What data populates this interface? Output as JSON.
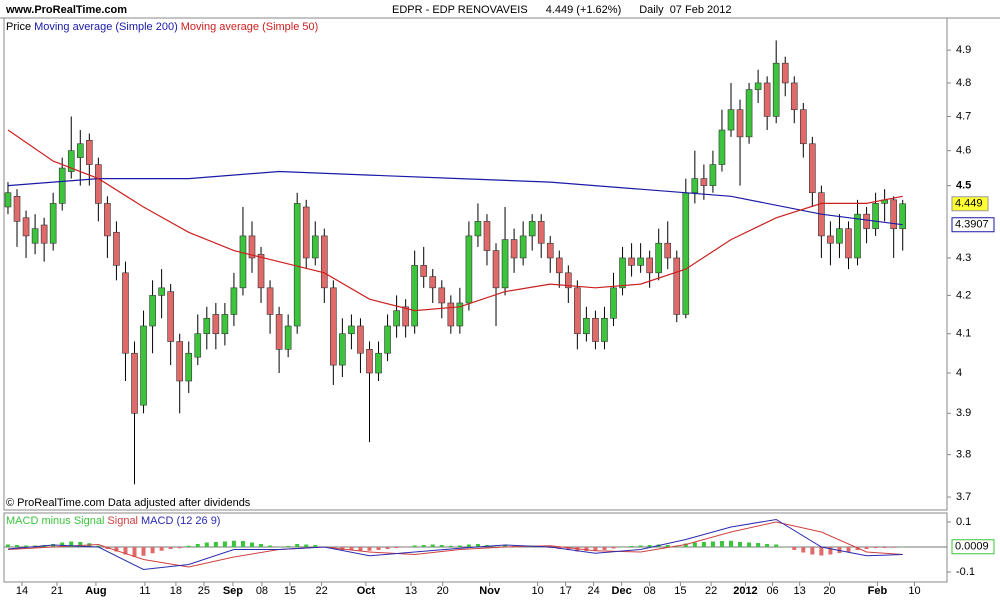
{
  "chart_data": [
    {
      "type": "candlestick",
      "site": "www.ProRealTime.com",
      "title": "EDPR - EDP RENOVAVEIS",
      "change": "4.449 (+1.62%)",
      "period": "Daily",
      "date": "07 Feb 2012",
      "price_label": "Price",
      "note": "© ProRealTime.com Data adjusted after dividends",
      "log_scale": true,
      "up_color": "#3cc43c",
      "down_color": "#e06a6a",
      "xlim": [
        -0.44,
        103.9
      ],
      "xticks": [
        {
          "value": 1.55,
          "label": "14"
        },
        {
          "value": 5.42,
          "label": "21"
        },
        {
          "value": 9.73,
          "label": "Aug"
        },
        {
          "value": 15.15,
          "label": "11"
        },
        {
          "value": 18.58,
          "label": "18"
        },
        {
          "value": 21.68,
          "label": "25"
        },
        {
          "value": 24.89,
          "label": "Sep"
        },
        {
          "value": 28.1,
          "label": "08"
        },
        {
          "value": 31.2,
          "label": "15"
        },
        {
          "value": 34.7,
          "label": "22"
        },
        {
          "value": 39.6,
          "label": "Oct"
        },
        {
          "value": 44.6,
          "label": "13"
        },
        {
          "value": 48.1,
          "label": "20"
        },
        {
          "value": 53.3,
          "label": "Nov"
        },
        {
          "value": 58.6,
          "label": "10"
        },
        {
          "value": 61.7,
          "label": "17"
        },
        {
          "value": 64.8,
          "label": "24"
        },
        {
          "value": 67.9,
          "label": "Dec"
        },
        {
          "value": 71.0,
          "label": "08"
        },
        {
          "value": 74.4,
          "label": "15"
        },
        {
          "value": 77.8,
          "label": "22"
        },
        {
          "value": 81.6,
          "label": "2012"
        },
        {
          "value": 84.6,
          "label": "06"
        },
        {
          "value": 87.6,
          "label": "13"
        },
        {
          "value": 90.9,
          "label": "20"
        },
        {
          "value": 96.2,
          "label": "Feb"
        },
        {
          "value": 100.3,
          "label": "10"
        }
      ],
      "ylim": [
        3.67,
        5.0
      ],
      "yticks": [
        3.7,
        3.8,
        3.9,
        4,
        4.1,
        4.2,
        4.3,
        4.5,
        4.6,
        4.7,
        4.8,
        4.9
      ],
      "candles": [
        [
          4.44,
          4.51,
          4.42,
          4.48
        ],
        [
          4.47,
          4.49,
          4.33,
          4.4
        ],
        [
          4.41,
          4.43,
          4.3,
          4.36
        ],
        [
          4.34,
          4.42,
          4.31,
          4.38
        ],
        [
          4.39,
          4.41,
          4.29,
          4.34
        ],
        [
          4.34,
          4.48,
          4.32,
          4.45
        ],
        [
          4.45,
          4.58,
          4.43,
          4.55
        ],
        [
          4.54,
          4.7,
          4.52,
          4.6
        ],
        [
          4.58,
          4.66,
          4.5,
          4.62
        ],
        [
          4.63,
          4.65,
          4.5,
          4.56
        ],
        [
          4.56,
          4.58,
          4.4,
          4.45
        ],
        [
          4.45,
          4.47,
          4.3,
          4.36
        ],
        [
          4.37,
          4.4,
          4.24,
          4.28
        ],
        [
          4.26,
          4.29,
          3.98,
          4.05
        ],
        [
          4.05,
          4.08,
          3.73,
          3.9
        ],
        [
          3.92,
          4.16,
          3.9,
          4.12
        ],
        [
          4.12,
          4.24,
          4.05,
          4.2
        ],
        [
          4.2,
          4.27,
          4.14,
          4.22
        ],
        [
          4.21,
          4.23,
          4.02,
          4.08
        ],
        [
          4.08,
          4.1,
          3.9,
          3.98
        ],
        [
          3.98,
          4.08,
          3.95,
          4.05
        ],
        [
          4.04,
          4.15,
          4.02,
          4.1
        ],
        [
          4.1,
          4.17,
          4.06,
          4.14
        ],
        [
          4.15,
          4.18,
          4.06,
          4.1
        ],
        [
          4.1,
          4.18,
          4.07,
          4.15
        ],
        [
          4.15,
          4.26,
          4.12,
          4.22
        ],
        [
          4.22,
          4.44,
          4.2,
          4.36
        ],
        [
          4.36,
          4.4,
          4.26,
          4.3
        ],
        [
          4.31,
          4.33,
          4.18,
          4.22
        ],
        [
          4.22,
          4.24,
          4.1,
          4.15
        ],
        [
          4.15,
          4.17,
          4.0,
          4.06
        ],
        [
          4.06,
          4.15,
          4.04,
          4.12
        ],
        [
          4.12,
          4.48,
          4.1,
          4.45
        ],
        [
          4.44,
          4.46,
          4.27,
          4.3
        ],
        [
          4.3,
          4.4,
          4.28,
          4.36
        ],
        [
          4.36,
          4.38,
          4.18,
          4.22
        ],
        [
          4.22,
          4.24,
          3.97,
          4.02
        ],
        [
          4.02,
          4.14,
          3.99,
          4.1
        ],
        [
          4.1,
          4.15,
          4.06,
          4.12
        ],
        [
          4.12,
          4.14,
          4.0,
          4.05
        ],
        [
          4.06,
          4.08,
          3.83,
          4.0
        ],
        [
          4.0,
          4.08,
          3.98,
          4.05
        ],
        [
          4.05,
          4.15,
          4.03,
          4.12
        ],
        [
          4.12,
          4.2,
          4.09,
          4.16
        ],
        [
          4.17,
          4.19,
          4.09,
          4.12
        ],
        [
          4.12,
          4.32,
          4.1,
          4.28
        ],
        [
          4.28,
          4.33,
          4.22,
          4.25
        ],
        [
          4.25,
          4.27,
          4.18,
          4.22
        ],
        [
          4.22,
          4.24,
          4.14,
          4.18
        ],
        [
          4.18,
          4.2,
          4.1,
          4.12
        ],
        [
          4.12,
          4.22,
          4.1,
          4.18
        ],
        [
          4.18,
          4.4,
          4.16,
          4.36
        ],
        [
          4.36,
          4.45,
          4.33,
          4.4
        ],
        [
          4.4,
          4.42,
          4.28,
          4.32
        ],
        [
          4.32,
          4.34,
          4.12,
          4.22
        ],
        [
          4.22,
          4.44,
          4.2,
          4.35
        ],
        [
          4.35,
          4.38,
          4.26,
          4.3
        ],
        [
          4.3,
          4.4,
          4.28,
          4.36
        ],
        [
          4.36,
          4.42,
          4.32,
          4.4
        ],
        [
          4.4,
          4.42,
          4.3,
          4.34
        ],
        [
          4.34,
          4.36,
          4.26,
          4.3
        ],
        [
          4.3,
          4.32,
          4.22,
          4.26
        ],
        [
          4.26,
          4.28,
          4.18,
          4.22
        ],
        [
          4.22,
          4.24,
          4.06,
          4.1
        ],
        [
          4.1,
          4.17,
          4.08,
          4.14
        ],
        [
          4.14,
          4.16,
          4.06,
          4.08
        ],
        [
          4.08,
          4.17,
          4.06,
          4.14
        ],
        [
          4.14,
          4.26,
          4.12,
          4.22
        ],
        [
          4.22,
          4.33,
          4.2,
          4.3
        ],
        [
          4.3,
          4.34,
          4.25,
          4.28
        ],
        [
          4.28,
          4.34,
          4.26,
          4.3
        ],
        [
          4.3,
          4.32,
          4.22,
          4.26
        ],
        [
          4.26,
          4.38,
          4.24,
          4.34
        ],
        [
          4.34,
          4.4,
          4.27,
          4.3
        ],
        [
          4.3,
          4.32,
          4.13,
          4.15
        ],
        [
          4.15,
          4.52,
          4.14,
          4.48
        ],
        [
          4.48,
          4.6,
          4.45,
          4.52
        ],
        [
          4.52,
          4.56,
          4.46,
          4.5
        ],
        [
          4.5,
          4.6,
          4.48,
          4.56
        ],
        [
          4.56,
          4.72,
          4.54,
          4.66
        ],
        [
          4.66,
          4.8,
          4.64,
          4.72
        ],
        [
          4.72,
          4.75,
          4.5,
          4.64
        ],
        [
          4.64,
          4.8,
          4.62,
          4.78
        ],
        [
          4.78,
          4.84,
          4.74,
          4.8
        ],
        [
          4.8,
          4.82,
          4.66,
          4.7
        ],
        [
          4.7,
          4.93,
          4.68,
          4.86
        ],
        [
          4.86,
          4.88,
          4.76,
          4.8
        ],
        [
          4.8,
          4.82,
          4.68,
          4.72
        ],
        [
          4.72,
          4.74,
          4.58,
          4.62
        ],
        [
          4.62,
          4.64,
          4.44,
          4.48
        ],
        [
          4.48,
          4.5,
          4.3,
          4.36
        ],
        [
          4.36,
          4.4,
          4.28,
          4.34
        ],
        [
          4.34,
          4.42,
          4.3,
          4.38
        ],
        [
          4.38,
          4.4,
          4.27,
          4.3
        ],
        [
          4.3,
          4.46,
          4.28,
          4.42
        ],
        [
          4.42,
          4.44,
          4.34,
          4.38
        ],
        [
          4.38,
          4.48,
          4.36,
          4.45
        ],
        [
          4.45,
          4.49,
          4.4,
          4.46
        ],
        [
          4.46,
          4.47,
          4.3,
          4.38
        ],
        [
          4.38,
          4.46,
          4.32,
          4.449
        ]
      ],
      "series": [
        {
          "name": "Moving average (Simple 200)",
          "color": "#1a1aa6",
          "x": [
            0,
            10,
            20,
            30,
            40,
            50,
            60,
            70,
            80,
            90,
            99
          ],
          "values": [
            4.5,
            4.52,
            4.52,
            4.54,
            4.53,
            4.52,
            4.51,
            4.49,
            4.47,
            4.42,
            4.3907
          ]
        },
        {
          "name": "Moving average (Simple 50)",
          "color": "#cc2020",
          "x": [
            0,
            5,
            10,
            15,
            20,
            25,
            30,
            35,
            40,
            45,
            50,
            55,
            60,
            65,
            70,
            75,
            80,
            85,
            90,
            95,
            99
          ],
          "values": [
            4.66,
            4.57,
            4.52,
            4.44,
            4.37,
            4.32,
            4.29,
            4.26,
            4.19,
            4.16,
            4.17,
            4.21,
            4.23,
            4.22,
            4.23,
            4.27,
            4.35,
            4.41,
            4.45,
            4.45,
            4.47
          ]
        }
      ]
    },
    {
      "type": "macd",
      "xlim": [
        -0.44,
        103.9
      ],
      "ylim": [
        -0.14,
        0.136
      ],
      "yticks": [
        0.1,
        -0.1
      ],
      "series": [
        {
          "name": "MACD minus Signal",
          "type": "bar",
          "color": "#3cc43c",
          "down_color": "#e06a6a",
          "values": [
            0.01,
            0.008,
            0.006,
            0.006,
            0.008,
            0.012,
            0.018,
            0.022,
            0.02,
            0.015,
            0.005,
            -0.008,
            -0.018,
            -0.03,
            -0.04,
            -0.035,
            -0.025,
            -0.015,
            -0.008,
            -0.005,
            0.005,
            0.012,
            0.018,
            0.02,
            0.022,
            0.025,
            0.024,
            0.018,
            0.012,
            0.006,
            0.0,
            0.004,
            0.012,
            0.01,
            0.008,
            0.002,
            -0.008,
            -0.012,
            -0.012,
            -0.014,
            -0.015,
            -0.012,
            -0.008,
            -0.004,
            -0.002,
            0.006,
            0.008,
            0.01,
            0.008,
            0.005,
            0.006,
            0.01,
            0.012,
            0.008,
            0.002,
            0.006,
            0.004,
            0.006,
            0.006,
            0.002,
            -0.004,
            -0.008,
            -0.012,
            -0.018,
            -0.016,
            -0.015,
            -0.012,
            -0.006,
            0.0,
            0.004,
            0.006,
            0.008,
            0.01,
            0.008,
            0.002,
            0.014,
            0.018,
            0.02,
            0.022,
            0.024,
            0.025,
            0.02,
            0.018,
            0.016,
            0.012,
            0.01,
            0.0,
            -0.012,
            -0.022,
            -0.03,
            -0.034,
            -0.03,
            -0.024,
            -0.02,
            -0.012,
            -0.008,
            -0.004,
            -0.004,
            -0.003,
            0.0009
          ]
        },
        {
          "name": "Signal",
          "type": "line",
          "color": "#d04040",
          "x": [
            0,
            5,
            10,
            15,
            20,
            25,
            30,
            35,
            40,
            45,
            50,
            55,
            60,
            65,
            70,
            75,
            80,
            85,
            90,
            95,
            99
          ],
          "values": [
            -0.01,
            0.0,
            0.01,
            -0.05,
            -0.08,
            -0.04,
            -0.01,
            0.0,
            -0.02,
            -0.03,
            -0.01,
            0.0,
            0.005,
            -0.015,
            -0.02,
            0.01,
            0.06,
            0.1,
            0.06,
            -0.02,
            -0.03
          ]
        },
        {
          "name": "MACD (12 26 9)",
          "type": "line",
          "color": "#2a2ab0",
          "x": [
            0,
            5,
            10,
            15,
            20,
            25,
            30,
            35,
            40,
            45,
            50,
            55,
            60,
            65,
            70,
            75,
            80,
            85,
            90,
            95,
            99
          ],
          "values": [
            -0.008,
            0.008,
            0.0,
            -0.09,
            -0.07,
            -0.01,
            -0.01,
            0.0,
            -0.035,
            -0.02,
            -0.005,
            0.008,
            0.0,
            -0.025,
            -0.01,
            0.03,
            0.08,
            0.11,
            0.0,
            -0.035,
            -0.03
          ]
        }
      ]
    }
  ]
}
